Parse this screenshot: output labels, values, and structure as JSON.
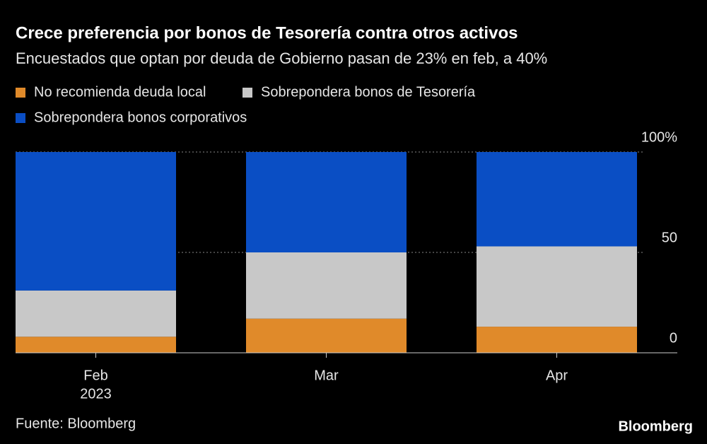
{
  "chart_data": {
    "type": "stacked-bar",
    "title": "Crece preferencia por bonos de Tesorería contra otros activos",
    "subtitle": "Encuestados que optan por deuda de Gobierno pasan de 23% en feb, a 40%",
    "categories": [
      "Feb",
      "Mar",
      "Apr"
    ],
    "year_label": "2023",
    "series": [
      {
        "name": "No recomienda deuda local",
        "color": "#e08a2a",
        "values": [
          8,
          17,
          13
        ]
      },
      {
        "name": "Sobrepondera bonos de Tesorería",
        "color": "#c8c8c8",
        "values": [
          23,
          33,
          40
        ]
      },
      {
        "name": "Sobrepondera bonos corporativos",
        "color": "#0a4ec4",
        "values": [
          69,
          50,
          47
        ]
      }
    ],
    "ylim": [
      0,
      100
    ],
    "yticks": [
      0,
      50,
      {
        "value": 100,
        "label": "100%"
      }
    ],
    "grid": true,
    "source": "Fuente: Bloomberg",
    "brand": "Bloomberg"
  }
}
